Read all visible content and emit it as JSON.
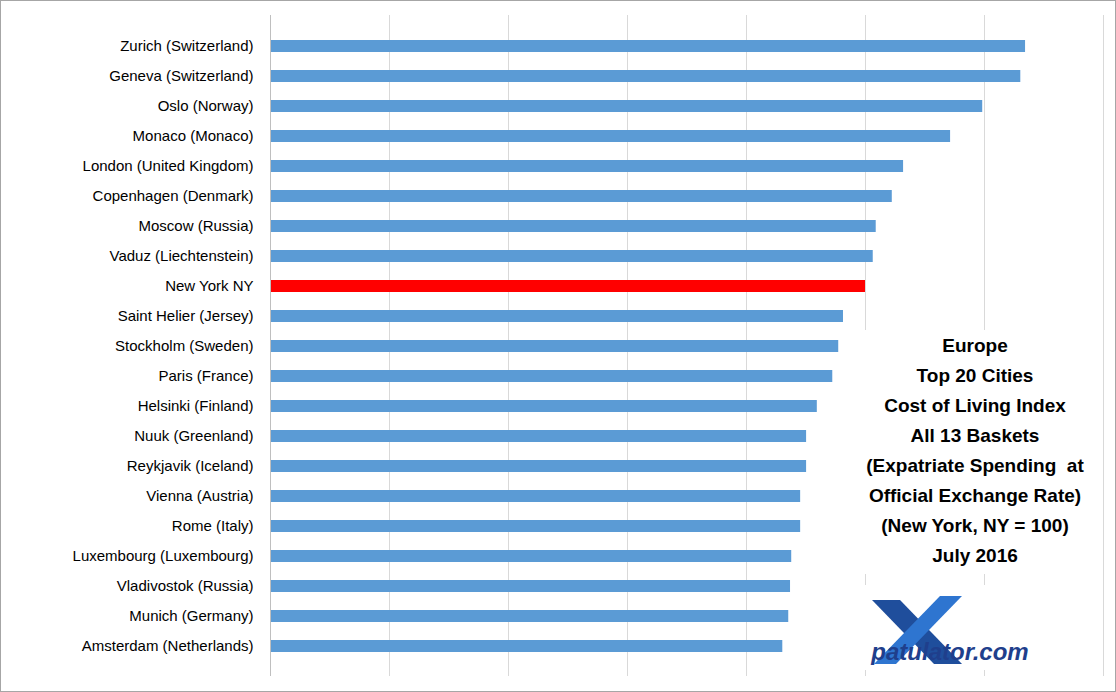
{
  "chart_data": {
    "type": "bar",
    "orientation": "horizontal",
    "title": "Europe\nTop 20 Cities\nCost of Living Index\nAll 13 Baskets\n(Expatriate Spending  at\nOfficial Exchange Rate)\n(New York, NY = 100)\nJuly 2016",
    "logo_text": "patulator.com",
    "categories": [
      "Zurich (Switzerland)",
      "Geneva (Switzerland)",
      "Oslo (Norway)",
      "Monaco (Monaco)",
      "London (United Kingdom)",
      "Copenhagen (Denmark)",
      "Moscow (Russia)",
      "Vaduz (Liechtenstein)",
      "New York NY",
      "Saint Helier (Jersey)",
      "Stockholm (Sweden)",
      "Paris (France)",
      "Helsinki (Finland)",
      "Nuuk (Greenland)",
      "Reykjavik (Iceland)",
      "Vienna (Austria)",
      "Rome (Italy)",
      "Luxembourg (Luxembourg)",
      "Vladivostok (Russia)",
      "Munich (Germany)",
      "Amsterdam (Netherlands)"
    ],
    "values": [
      126.9,
      126.1,
      119.7,
      114.3,
      106.4,
      104.5,
      101.8,
      101.3,
      100,
      96.3,
      95.5,
      94.5,
      91.9,
      90.1,
      90.1,
      89.1,
      89.1,
      87.6,
      87.4,
      87.1,
      86.1
    ],
    "colors": [
      "#5b9bd5",
      "#5b9bd5",
      "#5b9bd5",
      "#5b9bd5",
      "#5b9bd5",
      "#5b9bd5",
      "#5b9bd5",
      "#5b9bd5",
      "#ff0000",
      "#5b9bd5",
      "#5b9bd5",
      "#5b9bd5",
      "#5b9bd5",
      "#5b9bd5",
      "#5b9bd5",
      "#5b9bd5",
      "#5b9bd5",
      "#5b9bd5",
      "#5b9bd5",
      "#5b9bd5",
      "#5b9bd5"
    ],
    "xlim": [
      0,
      140
    ],
    "xticks": [
      0,
      20,
      40,
      60,
      80,
      100,
      120,
      140
    ],
    "grid": true,
    "tick_labels": "y"
  }
}
